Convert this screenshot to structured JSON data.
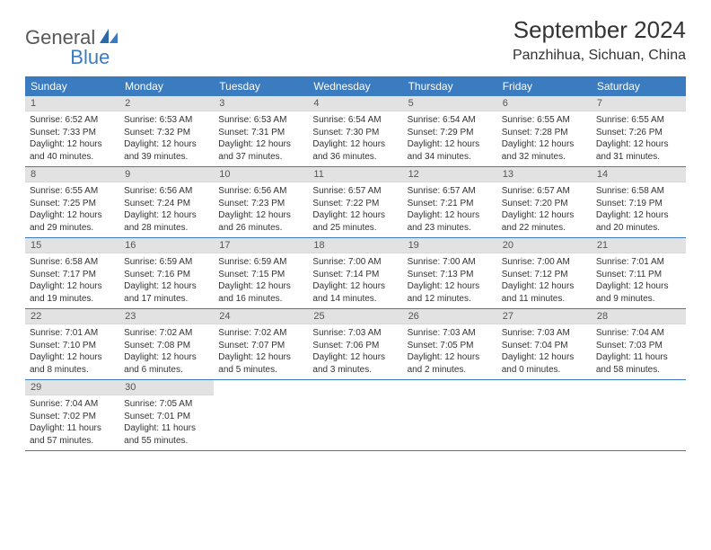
{
  "logo": {
    "general": "General",
    "blue": "Blue"
  },
  "title": "September 2024",
  "location": "Panzhihua, Sichuan, China",
  "colors": {
    "header_bg": "#3b7bbf",
    "daynum_bg": "#e2e2e2",
    "text": "#333333",
    "logo_gray": "#575757",
    "logo_blue": "#3b7bbf"
  },
  "weekdays": [
    "Sunday",
    "Monday",
    "Tuesday",
    "Wednesday",
    "Thursday",
    "Friday",
    "Saturday"
  ],
  "days": [
    {
      "n": "1",
      "sr": "6:52 AM",
      "ss": "7:33 PM",
      "dl": "12 hours and 40 minutes."
    },
    {
      "n": "2",
      "sr": "6:53 AM",
      "ss": "7:32 PM",
      "dl": "12 hours and 39 minutes."
    },
    {
      "n": "3",
      "sr": "6:53 AM",
      "ss": "7:31 PM",
      "dl": "12 hours and 37 minutes."
    },
    {
      "n": "4",
      "sr": "6:54 AM",
      "ss": "7:30 PM",
      "dl": "12 hours and 36 minutes."
    },
    {
      "n": "5",
      "sr": "6:54 AM",
      "ss": "7:29 PM",
      "dl": "12 hours and 34 minutes."
    },
    {
      "n": "6",
      "sr": "6:55 AM",
      "ss": "7:28 PM",
      "dl": "12 hours and 32 minutes."
    },
    {
      "n": "7",
      "sr": "6:55 AM",
      "ss": "7:26 PM",
      "dl": "12 hours and 31 minutes."
    },
    {
      "n": "8",
      "sr": "6:55 AM",
      "ss": "7:25 PM",
      "dl": "12 hours and 29 minutes."
    },
    {
      "n": "9",
      "sr": "6:56 AM",
      "ss": "7:24 PM",
      "dl": "12 hours and 28 minutes."
    },
    {
      "n": "10",
      "sr": "6:56 AM",
      "ss": "7:23 PM",
      "dl": "12 hours and 26 minutes."
    },
    {
      "n": "11",
      "sr": "6:57 AM",
      "ss": "7:22 PM",
      "dl": "12 hours and 25 minutes."
    },
    {
      "n": "12",
      "sr": "6:57 AM",
      "ss": "7:21 PM",
      "dl": "12 hours and 23 minutes."
    },
    {
      "n": "13",
      "sr": "6:57 AM",
      "ss": "7:20 PM",
      "dl": "12 hours and 22 minutes."
    },
    {
      "n": "14",
      "sr": "6:58 AM",
      "ss": "7:19 PM",
      "dl": "12 hours and 20 minutes."
    },
    {
      "n": "15",
      "sr": "6:58 AM",
      "ss": "7:17 PM",
      "dl": "12 hours and 19 minutes."
    },
    {
      "n": "16",
      "sr": "6:59 AM",
      "ss": "7:16 PM",
      "dl": "12 hours and 17 minutes."
    },
    {
      "n": "17",
      "sr": "6:59 AM",
      "ss": "7:15 PM",
      "dl": "12 hours and 16 minutes."
    },
    {
      "n": "18",
      "sr": "7:00 AM",
      "ss": "7:14 PM",
      "dl": "12 hours and 14 minutes."
    },
    {
      "n": "19",
      "sr": "7:00 AM",
      "ss": "7:13 PM",
      "dl": "12 hours and 12 minutes."
    },
    {
      "n": "20",
      "sr": "7:00 AM",
      "ss": "7:12 PM",
      "dl": "12 hours and 11 minutes."
    },
    {
      "n": "21",
      "sr": "7:01 AM",
      "ss": "7:11 PM",
      "dl": "12 hours and 9 minutes."
    },
    {
      "n": "22",
      "sr": "7:01 AM",
      "ss": "7:10 PM",
      "dl": "12 hours and 8 minutes."
    },
    {
      "n": "23",
      "sr": "7:02 AM",
      "ss": "7:08 PM",
      "dl": "12 hours and 6 minutes."
    },
    {
      "n": "24",
      "sr": "7:02 AM",
      "ss": "7:07 PM",
      "dl": "12 hours and 5 minutes."
    },
    {
      "n": "25",
      "sr": "7:03 AM",
      "ss": "7:06 PM",
      "dl": "12 hours and 3 minutes."
    },
    {
      "n": "26",
      "sr": "7:03 AM",
      "ss": "7:05 PM",
      "dl": "12 hours and 2 minutes."
    },
    {
      "n": "27",
      "sr": "7:03 AM",
      "ss": "7:04 PM",
      "dl": "12 hours and 0 minutes."
    },
    {
      "n": "28",
      "sr": "7:04 AM",
      "ss": "7:03 PM",
      "dl": "11 hours and 58 minutes."
    },
    {
      "n": "29",
      "sr": "7:04 AM",
      "ss": "7:02 PM",
      "dl": "11 hours and 57 minutes."
    },
    {
      "n": "30",
      "sr": "7:05 AM",
      "ss": "7:01 PM",
      "dl": "11 hours and 55 minutes."
    }
  ],
  "labels": {
    "sunrise": "Sunrise:",
    "sunset": "Sunset:",
    "daylight": "Daylight:"
  }
}
